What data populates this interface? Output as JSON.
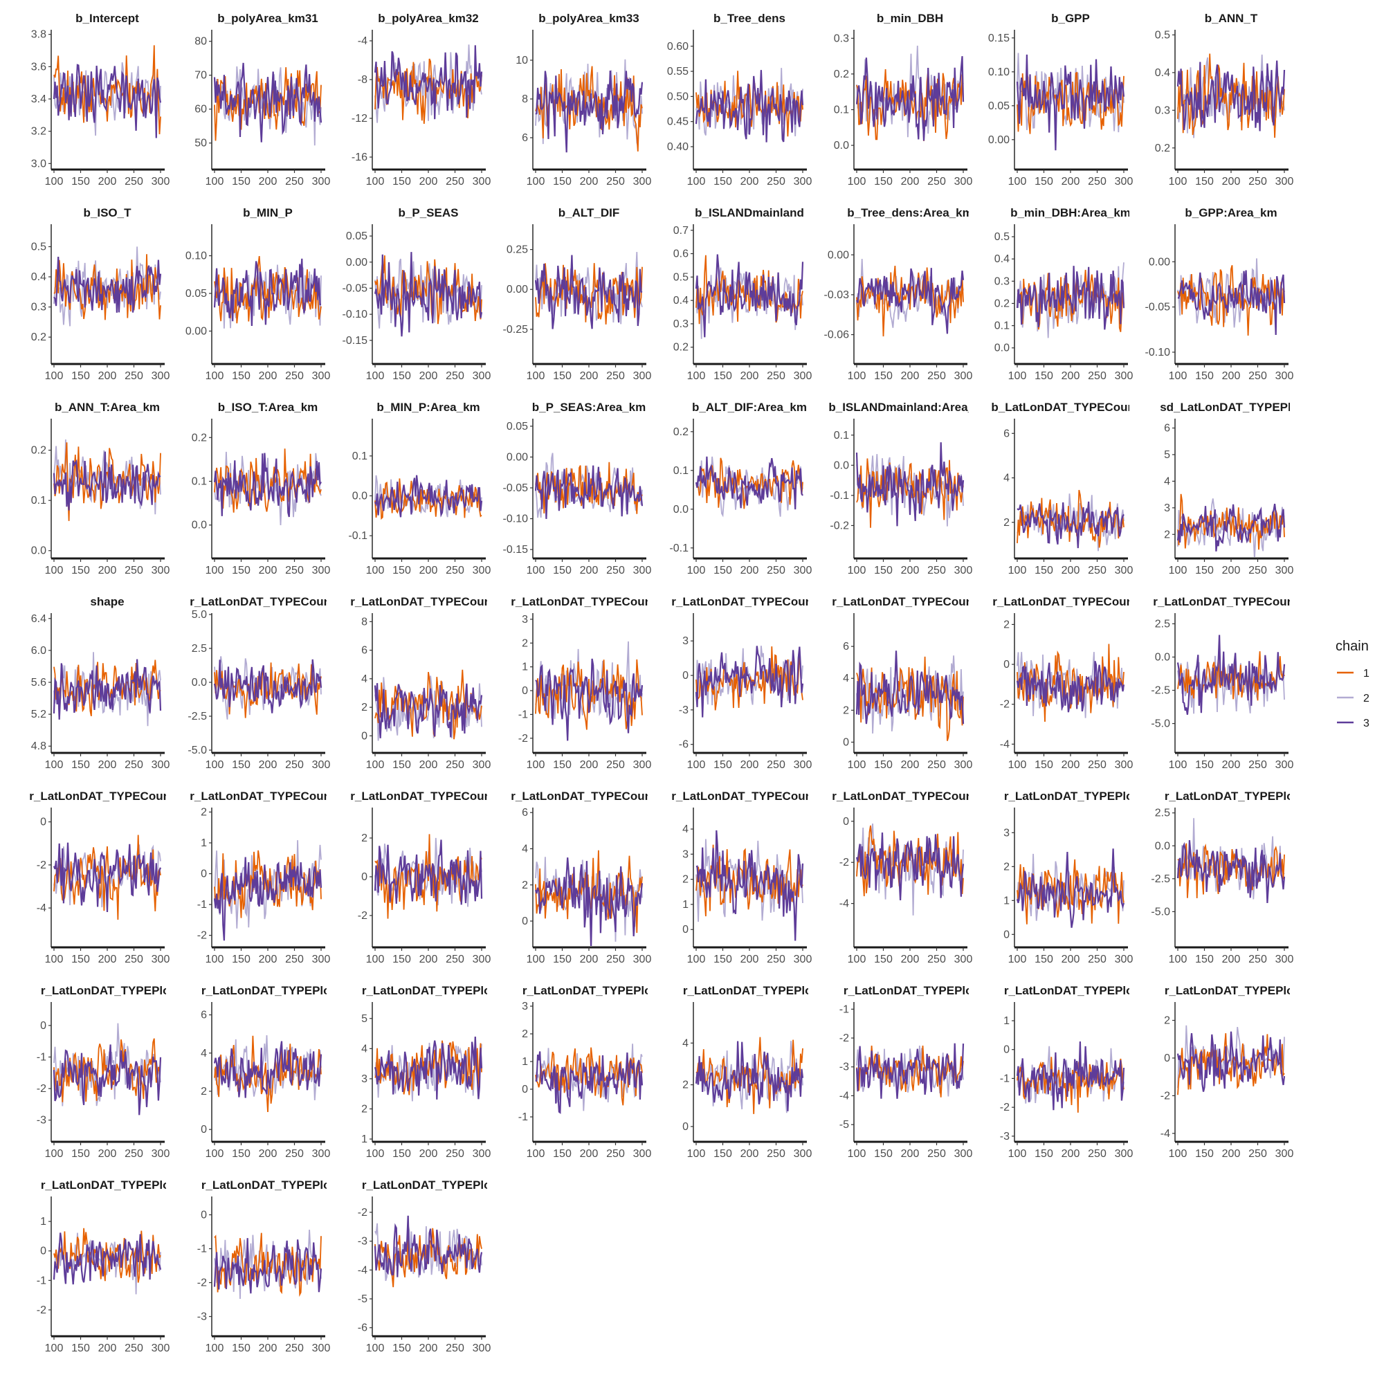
{
  "chart_data": {
    "type": "line",
    "x_ticks": [
      100,
      150,
      200,
      250,
      300
    ],
    "xlim": [
      100,
      300
    ],
    "legend": {
      "title": "chain",
      "placement": "right",
      "entries": [
        {
          "label": "1",
          "color": "#e66101"
        },
        {
          "label": "2",
          "color": "#b2abd2"
        },
        {
          "label": "3",
          "color": "#5e3c99"
        }
      ]
    },
    "panels": [
      {
        "title": "b_Intercept",
        "yticks": [
          "3.0",
          "3.2",
          "3.4",
          "3.6",
          "3.8"
        ],
        "ylim": [
          2.98,
          3.82
        ],
        "center": 3.42,
        "spread": 0.12
      },
      {
        "title": "b_polyArea_km31",
        "yticks": [
          "50",
          "60",
          "70",
          "80"
        ],
        "ylim": [
          43,
          83
        ],
        "center": 63,
        "spread": 6
      },
      {
        "title": "b_polyArea_km32",
        "yticks": [
          "-16",
          "-12",
          "-8",
          "-4"
        ],
        "ylim": [
          -17,
          -3
        ],
        "center": -8.8,
        "spread": 2
      },
      {
        "title": "b_polyArea_km33",
        "yticks": [
          "6",
          "8",
          "10"
        ],
        "ylim": [
          4.5,
          11.5
        ],
        "center": 7.8,
        "spread": 1.1
      },
      {
        "title": "b_Tree_dens",
        "yticks": [
          "0.40",
          "0.45",
          "0.50",
          "0.55",
          "0.60"
        ],
        "ylim": [
          0.36,
          0.63
        ],
        "center": 0.48,
        "spread": 0.035
      },
      {
        "title": "b_min_DBH",
        "yticks": [
          "0.0",
          "0.1",
          "0.2",
          "0.3"
        ],
        "ylim": [
          -0.06,
          0.32
        ],
        "center": 0.12,
        "spread": 0.06
      },
      {
        "title": "b_GPP",
        "yticks": [
          "0.00",
          "0.05",
          "0.10",
          "0.15"
        ],
        "ylim": [
          -0.04,
          0.16
        ],
        "center": 0.06,
        "spread": 0.03
      },
      {
        "title": "b_ANN_T",
        "yticks": [
          "0.2",
          "0.3",
          "0.4",
          "0.5"
        ],
        "ylim": [
          0.15,
          0.51
        ],
        "center": 0.33,
        "spread": 0.06
      },
      {
        "title": "b_ISO_T",
        "yticks": [
          "0.2",
          "0.3",
          "0.4",
          "0.5"
        ],
        "ylim": [
          0.12,
          0.57
        ],
        "center": 0.36,
        "spread": 0.06
      },
      {
        "title": "b_MIN_P",
        "yticks": [
          "0.00",
          "0.05",
          "0.10"
        ],
        "ylim": [
          -0.04,
          0.14
        ],
        "center": 0.05,
        "spread": 0.025
      },
      {
        "title": "b_P_SEAS",
        "yticks": [
          "-0.15",
          "-0.10",
          "-0.05",
          "0.00",
          "0.05"
        ],
        "ylim": [
          -0.19,
          0.07
        ],
        "center": -0.06,
        "spread": 0.04
      },
      {
        "title": "b_ALT_DIF",
        "yticks": [
          "-0.25",
          "0.00",
          "0.25"
        ],
        "ylim": [
          -0.45,
          0.4
        ],
        "center": -0.02,
        "spread": 0.12
      },
      {
        "title": "b_ISLANDmainland",
        "yticks": [
          "0.2",
          "0.3",
          "0.4",
          "0.5",
          "0.6",
          "0.7"
        ],
        "ylim": [
          0.14,
          0.72
        ],
        "center": 0.42,
        "spread": 0.08
      },
      {
        "title": "b_Tree_dens:Area_km",
        "yticks": [
          "-0.06",
          "-0.03",
          "0.00"
        ],
        "ylim": [
          -0.08,
          0.022
        ],
        "center": -0.03,
        "spread": 0.012
      },
      {
        "title": "b_min_DBH:Area_km",
        "yticks": [
          "0.0",
          "0.1",
          "0.2",
          "0.3",
          "0.4",
          "0.5"
        ],
        "ylim": [
          -0.06,
          0.55
        ],
        "center": 0.22,
        "spread": 0.08
      },
      {
        "title": "b_GPP:Area_km",
        "yticks": [
          "-0.10",
          "-0.05",
          "0.00"
        ],
        "ylim": [
          -0.11,
          0.04
        ],
        "center": -0.04,
        "spread": 0.02
      },
      {
        "title": "b_ANN_T:Area_km",
        "yticks": [
          "0.0",
          "0.1",
          "0.2"
        ],
        "ylim": [
          -0.01,
          0.26
        ],
        "center": 0.14,
        "spread": 0.035
      },
      {
        "title": "b_ISO_T:Area_km",
        "yticks": [
          "0.0",
          "0.1",
          "0.2"
        ],
        "ylim": [
          -0.07,
          0.24
        ],
        "center": 0.09,
        "spread": 0.04
      },
      {
        "title": "b_MIN_P:Area_km",
        "yticks": [
          "-0.1",
          "0.0",
          "0.1"
        ],
        "ylim": [
          -0.15,
          0.19
        ],
        "center": -0.01,
        "spread": 0.03
      },
      {
        "title": "b_P_SEAS:Area_km",
        "yticks": [
          "-0.15",
          "-0.10",
          "-0.05",
          "0.00",
          "0.05"
        ],
        "ylim": [
          -0.16,
          0.06
        ],
        "center": -0.05,
        "spread": 0.025
      },
      {
        "title": "b_ALT_DIF:Area_km",
        "yticks": [
          "-0.1",
          "0.0",
          "0.1",
          "0.2"
        ],
        "ylim": [
          -0.12,
          0.23
        ],
        "center": 0.06,
        "spread": 0.04
      },
      {
        "title": "b_ISLANDmainland:Area_km",
        "yticks": [
          "-0.2",
          "-0.1",
          "0.0",
          "0.1"
        ],
        "ylim": [
          -0.3,
          0.15
        ],
        "center": -0.07,
        "spread": 0.06
      },
      {
        "title": "b_LatLonDAT_TYPECountry",
        "yticks": [
          "2",
          "4",
          "6"
        ],
        "ylim": [
          0.5,
          6.6
        ],
        "center": 2.1,
        "spread": 0.6
      },
      {
        "title": "sd_LatLonDAT_TYPEPlot",
        "yticks": [
          "2",
          "3",
          "4",
          "5",
          "6"
        ],
        "ylim": [
          1.2,
          6.3
        ],
        "center": 2.3,
        "spread": 0.5
      },
      {
        "title": "shape",
        "yticks": [
          "4.8",
          "5.2",
          "5.6",
          "6.0",
          "6.4"
        ],
        "ylim": [
          4.75,
          6.45
        ],
        "center": 5.5,
        "spread": 0.22
      },
      {
        "title": "r_LatLonDAT_TYPECountry",
        "yticks": [
          "-5.0",
          "-2.5",
          "0.0",
          "2.5",
          "5.0"
        ],
        "ylim": [
          -5,
          5
        ],
        "center": -0.3,
        "spread": 1.1
      },
      {
        "title": "r_LatLonDAT_TYPECountry",
        "yticks": [
          "0",
          "2",
          "4",
          "6",
          "8"
        ],
        "ylim": [
          -1,
          8.5
        ],
        "center": 2,
        "spread": 1.2
      },
      {
        "title": "r_LatLonDAT_TYPECountry",
        "yticks": [
          "-2",
          "-1",
          "0",
          "1",
          "2",
          "3"
        ],
        "ylim": [
          -2.5,
          3.2
        ],
        "center": 0,
        "spread": 0.8
      },
      {
        "title": "r_LatLonDAT_TYPECountry",
        "yticks": [
          "-6",
          "-3",
          "0",
          "3"
        ],
        "ylim": [
          -6.5,
          5.3
        ],
        "center": -0.2,
        "spread": 1.5
      },
      {
        "title": "r_LatLonDAT_TYPECountry",
        "yticks": [
          "0",
          "2",
          "4",
          "6"
        ],
        "ylim": [
          -0.5,
          8
        ],
        "center": 3,
        "spread": 1.3
      },
      {
        "title": "r_LatLonDAT_TYPECountry",
        "yticks": [
          "-4",
          "-2",
          "0",
          "2"
        ],
        "ylim": [
          -4.3,
          2.5
        ],
        "center": -1,
        "spread": 0.9
      },
      {
        "title": "r_LatLonDAT_TYPECountry",
        "yticks": [
          "-5.0",
          "-2.5",
          "0.0",
          "2.5"
        ],
        "ylim": [
          -7,
          3.2
        ],
        "center": -1.7,
        "spread": 1.3
      },
      {
        "title": "r_LatLonDAT_TYPECountry",
        "yticks": [
          "-4",
          "-2",
          "0"
        ],
        "ylim": [
          -5.7,
          0.6
        ],
        "center": -2.4,
        "spread": 0.9
      },
      {
        "title": "r_LatLonDAT_TYPECountry",
        "yticks": [
          "-2",
          "-1",
          "0",
          "1",
          "2"
        ],
        "ylim": [
          -2.3,
          2.1
        ],
        "center": -0.4,
        "spread": 0.6
      },
      {
        "title": "r_LatLonDAT_TYPECountry",
        "yticks": [
          "-2",
          "0",
          "2"
        ],
        "ylim": [
          -3.5,
          3.5
        ],
        "center": 0,
        "spread": 1
      },
      {
        "title": "r_LatLonDAT_TYPECountry",
        "yticks": [
          "0",
          "2",
          "4",
          "6"
        ],
        "ylim": [
          -1.3,
          6.2
        ],
        "center": 1.5,
        "spread": 1.1
      },
      {
        "title": "r_LatLonDAT_TYPECountry",
        "yticks": [
          "0",
          "1",
          "2",
          "3",
          "4"
        ],
        "ylim": [
          -0.6,
          4.8
        ],
        "center": 1.9,
        "spread": 0.8
      },
      {
        "title": "r_LatLonDAT_TYPECountry",
        "yticks": [
          "-4",
          "-2",
          "0"
        ],
        "ylim": [
          -6,
          0.6
        ],
        "center": -2,
        "spread": 1
      },
      {
        "title": "r_LatLonDAT_TYPEPlot",
        "yticks": [
          "0",
          "1",
          "2",
          "3"
        ],
        "ylim": [
          -0.3,
          3.7
        ],
        "center": 1.3,
        "spread": 0.5
      },
      {
        "title": "r_LatLonDAT_TYPEPlot",
        "yticks": [
          "-5.0",
          "-2.5",
          "0.0",
          "2.5"
        ],
        "ylim": [
          -7.5,
          2.8
        ],
        "center": -1.8,
        "spread": 1.3
      },
      {
        "title": "r_LatLonDAT_TYPEPlot",
        "yticks": [
          "-3",
          "-2",
          "-1",
          "0"
        ],
        "ylim": [
          -3.6,
          0.7
        ],
        "center": -1.5,
        "spread": 0.55
      },
      {
        "title": "r_LatLonDAT_TYPEPlot",
        "yticks": [
          "0",
          "2",
          "4",
          "6"
        ],
        "ylim": [
          -0.5,
          6.6
        ],
        "center": 3,
        "spread": 0.9
      },
      {
        "title": "r_LatLonDAT_TYPEPlot",
        "yticks": [
          "1",
          "2",
          "3",
          "4",
          "5"
        ],
        "ylim": [
          1,
          5.5
        ],
        "center": 3.3,
        "spread": 0.6
      },
      {
        "title": "r_LatLonDAT_TYPEPlot",
        "yticks": [
          "-1",
          "0",
          "1",
          "2",
          "3"
        ],
        "ylim": [
          -1.8,
          3.1
        ],
        "center": 0.5,
        "spread": 0.6
      },
      {
        "title": "r_LatLonDAT_TYPEPlot",
        "yticks": [
          "0",
          "2",
          "4"
        ],
        "ylim": [
          -0.6,
          5.9
        ],
        "center": 2.3,
        "spread": 0.9
      },
      {
        "title": "r_LatLonDAT_TYPEPlot",
        "yticks": [
          "-5",
          "-4",
          "-3",
          "-2",
          "-1"
        ],
        "ylim": [
          -5.5,
          -0.8
        ],
        "center": -3.1,
        "spread": 0.55
      },
      {
        "title": "r_LatLonDAT_TYPEPlot",
        "yticks": [
          "-3",
          "-2",
          "-1",
          "0",
          "1"
        ],
        "ylim": [
          -3.1,
          1.6
        ],
        "center": -1,
        "spread": 0.55
      },
      {
        "title": "r_LatLonDAT_TYPEPlot",
        "yticks": [
          "-4",
          "-2",
          "0",
          "2"
        ],
        "ylim": [
          -4.3,
          2.9
        ],
        "center": -0.2,
        "spread": 0.8
      },
      {
        "title": "r_LatLonDAT_TYPEPlot",
        "yticks": [
          "-2",
          "-1",
          "0",
          "1"
        ],
        "ylim": [
          -2.8,
          1.8
        ],
        "center": -0.2,
        "spread": 0.5
      },
      {
        "title": "r_LatLonDAT_TYPEPlot",
        "yticks": [
          "-3",
          "-2",
          "-1",
          "0"
        ],
        "ylim": [
          -3.5,
          0.5
        ],
        "center": -1.5,
        "spread": 0.5
      },
      {
        "title": "r_LatLonDAT_TYPEPlot",
        "yticks": [
          "-6",
          "-5",
          "-4",
          "-3",
          "-2"
        ],
        "ylim": [
          -6.2,
          -1.5
        ],
        "center": -3.5,
        "spread": 0.55
      }
    ]
  }
}
